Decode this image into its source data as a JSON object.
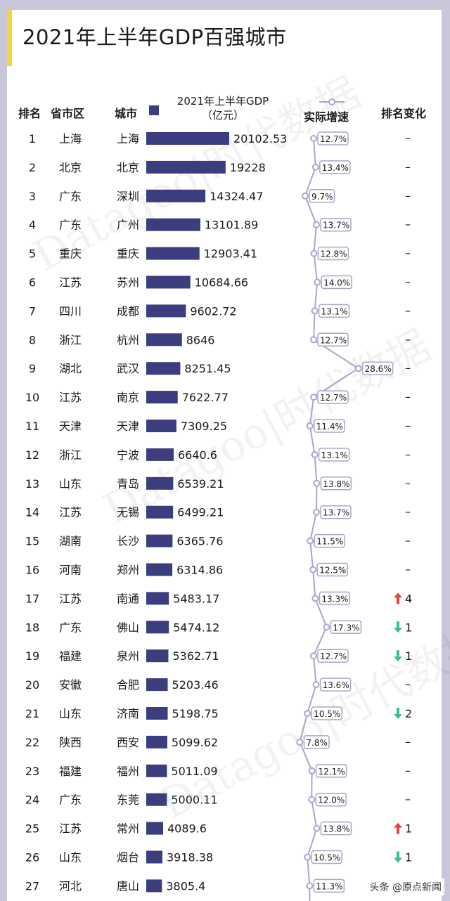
{
  "chart_data": {
    "type": "bar",
    "title": "2021年上半年GDP百强城市",
    "columns": {
      "rank": "排名",
      "province": "省市区",
      "city": "城市",
      "gdp": "2021年上半年GDP",
      "gdp_unit": "（亿元）",
      "speed": "实际增速",
      "rank_change": "排名变化"
    },
    "rows": [
      {
        "rank": "1",
        "province": "上海",
        "city": "上海",
        "gdp": "20102.53",
        "gdp_value": 20102.53,
        "speed": "12.7%",
        "speed_value": 12.7,
        "change": "–",
        "dir": "none"
      },
      {
        "rank": "2",
        "province": "北京",
        "city": "北京",
        "gdp": "19228",
        "gdp_value": 19228,
        "speed": "13.4%",
        "speed_value": 13.4,
        "change": "–",
        "dir": "none"
      },
      {
        "rank": "3",
        "province": "广东",
        "city": "深圳",
        "gdp": "14324.47",
        "gdp_value": 14324.47,
        "speed": "9.7%",
        "speed_value": 9.7,
        "change": "–",
        "dir": "none"
      },
      {
        "rank": "4",
        "province": "广东",
        "city": "广州",
        "gdp": "13101.89",
        "gdp_value": 13101.89,
        "speed": "13.7%",
        "speed_value": 13.7,
        "change": "–",
        "dir": "none"
      },
      {
        "rank": "5",
        "province": "重庆",
        "city": "重庆",
        "gdp": "12903.41",
        "gdp_value": 12903.41,
        "speed": "12.8%",
        "speed_value": 12.8,
        "change": "–",
        "dir": "none"
      },
      {
        "rank": "6",
        "province": "江苏",
        "city": "苏州",
        "gdp": "10684.66",
        "gdp_value": 10684.66,
        "speed": "14.0%",
        "speed_value": 14.0,
        "change": "–",
        "dir": "none"
      },
      {
        "rank": "7",
        "province": "四川",
        "city": "成都",
        "gdp": "9602.72",
        "gdp_value": 9602.72,
        "speed": "13.1%",
        "speed_value": 13.1,
        "change": "–",
        "dir": "none"
      },
      {
        "rank": "8",
        "province": "浙江",
        "city": "杭州",
        "gdp": "8646",
        "gdp_value": 8646,
        "speed": "12.7%",
        "speed_value": 12.7,
        "change": "–",
        "dir": "none"
      },
      {
        "rank": "9",
        "province": "湖北",
        "city": "武汉",
        "gdp": "8251.45",
        "gdp_value": 8251.45,
        "speed": "28.6%",
        "speed_value": 28.6,
        "change": "–",
        "dir": "none"
      },
      {
        "rank": "10",
        "province": "江苏",
        "city": "南京",
        "gdp": "7622.77",
        "gdp_value": 7622.77,
        "speed": "12.7%",
        "speed_value": 12.7,
        "change": "–",
        "dir": "none"
      },
      {
        "rank": "11",
        "province": "天津",
        "city": "天津",
        "gdp": "7309.25",
        "gdp_value": 7309.25,
        "speed": "11.4%",
        "speed_value": 11.4,
        "change": "–",
        "dir": "none"
      },
      {
        "rank": "12",
        "province": "浙江",
        "city": "宁波",
        "gdp": "6640.6",
        "gdp_value": 6640.6,
        "speed": "13.1%",
        "speed_value": 13.1,
        "change": "–",
        "dir": "none"
      },
      {
        "rank": "13",
        "province": "山东",
        "city": "青岛",
        "gdp": "6539.21",
        "gdp_value": 6539.21,
        "speed": "13.8%",
        "speed_value": 13.8,
        "change": "–",
        "dir": "none"
      },
      {
        "rank": "14",
        "province": "江苏",
        "city": "无锡",
        "gdp": "6499.21",
        "gdp_value": 6499.21,
        "speed": "13.7%",
        "speed_value": 13.7,
        "change": "–",
        "dir": "none"
      },
      {
        "rank": "15",
        "province": "湖南",
        "city": "长沙",
        "gdp": "6365.76",
        "gdp_value": 6365.76,
        "speed": "11.5%",
        "speed_value": 11.5,
        "change": "–",
        "dir": "none"
      },
      {
        "rank": "16",
        "province": "河南",
        "city": "郑州",
        "gdp": "6314.86",
        "gdp_value": 6314.86,
        "speed": "12.5%",
        "speed_value": 12.5,
        "change": "–",
        "dir": "none"
      },
      {
        "rank": "17",
        "province": "江苏",
        "city": "南通",
        "gdp": "5483.17",
        "gdp_value": 5483.17,
        "speed": "13.3%",
        "speed_value": 13.3,
        "change": "4",
        "dir": "up"
      },
      {
        "rank": "18",
        "province": "广东",
        "city": "佛山",
        "gdp": "5474.12",
        "gdp_value": 5474.12,
        "speed": "17.3%",
        "speed_value": 17.3,
        "change": "1",
        "dir": "down"
      },
      {
        "rank": "19",
        "province": "福建",
        "city": "泉州",
        "gdp": "5362.71",
        "gdp_value": 5362.71,
        "speed": "12.7%",
        "speed_value": 12.7,
        "change": "1",
        "dir": "down"
      },
      {
        "rank": "20",
        "province": "安徽",
        "city": "合肥",
        "gdp": "5203.46",
        "gdp_value": 5203.46,
        "speed": "13.6%",
        "speed_value": 13.6,
        "change": "–",
        "dir": "none"
      },
      {
        "rank": "21",
        "province": "山东",
        "city": "济南",
        "gdp": "5198.75",
        "gdp_value": 5198.75,
        "speed": "10.5%",
        "speed_value": 10.5,
        "change": "2",
        "dir": "down"
      },
      {
        "rank": "22",
        "province": "陕西",
        "city": "西安",
        "gdp": "5099.62",
        "gdp_value": 5099.62,
        "speed": "7.8%",
        "speed_value": 7.8,
        "change": "–",
        "dir": "none"
      },
      {
        "rank": "23",
        "province": "福建",
        "city": "福州",
        "gdp": "5011.09",
        "gdp_value": 5011.09,
        "speed": "12.1%",
        "speed_value": 12.1,
        "change": "–",
        "dir": "none"
      },
      {
        "rank": "24",
        "province": "广东",
        "city": "东莞",
        "gdp": "5000.11",
        "gdp_value": 5000.11,
        "speed": "12.0%",
        "speed_value": 12.0,
        "change": "–",
        "dir": "none"
      },
      {
        "rank": "25",
        "province": "江苏",
        "city": "常州",
        "gdp": "4089.6",
        "gdp_value": 4089.6,
        "speed": "13.8%",
        "speed_value": 13.8,
        "change": "1",
        "dir": "up"
      },
      {
        "rank": "26",
        "province": "山东",
        "city": "烟台",
        "gdp": "3918.38",
        "gdp_value": 3918.38,
        "speed": "10.5%",
        "speed_value": 10.5,
        "change": "1",
        "dir": "down"
      },
      {
        "rank": "27",
        "province": "河北",
        "city": "唐山",
        "gdp": "3805.4",
        "gdp_value": 3805.4,
        "speed": "11.3%",
        "speed_value": 11.3,
        "change": "",
        "dir": "none"
      }
    ]
  },
  "colors": {
    "bar": "#3b3d7e",
    "line": "#a9a6cc",
    "up": "#e0463c",
    "down": "#3bbf93"
  },
  "watermark": {
    "text": "头条 @原点新闻",
    "bg_text": "Datagoo|时代数据"
  }
}
